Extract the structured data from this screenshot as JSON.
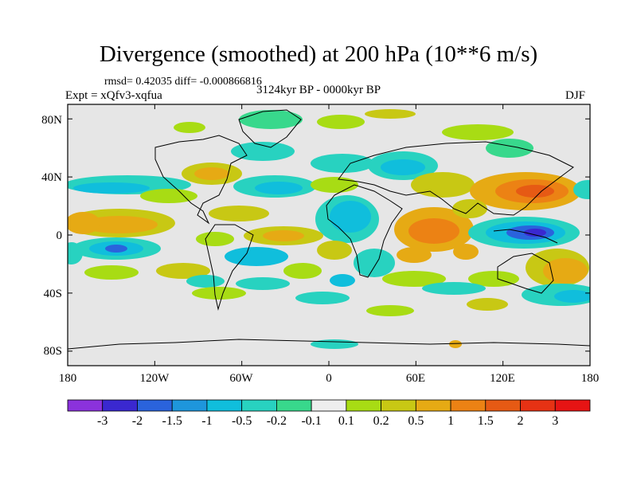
{
  "title": "Divergence (smoothed) at 200 hPa (10**6 m/s)",
  "stats": "rmsd= 0.42035 diff= -0.000866816",
  "experiment": "Expt = xQfv3-xqfua",
  "period": "3124kyr BP - 0000kyr BP",
  "season": "DJF",
  "map": {
    "lat_labels": [
      "80N",
      "40N",
      "0",
      "40S",
      "80S"
    ],
    "lon_labels": [
      "180",
      "120W",
      "60W",
      "0",
      "60E",
      "120E",
      "180"
    ],
    "background_color": "#e6e6e6"
  },
  "colorbar": {
    "labels": [
      "-3",
      "-2",
      "-1.5",
      "-1",
      "-0.5",
      "-0.2",
      "-0.1",
      "0.1",
      "0.2",
      "0.5",
      "1",
      "1.5",
      "2",
      "3"
    ],
    "colors": [
      "#8b32dc",
      "#3a28d0",
      "#2a63dc",
      "#1e96dc",
      "#10bedc",
      "#28d2c0",
      "#38d88c",
      "#eeeeee",
      "#a8dc14",
      "#c8c814",
      "#e6aa14",
      "#ec8214",
      "#e65a14",
      "#e63214",
      "#e61414"
    ]
  }
}
